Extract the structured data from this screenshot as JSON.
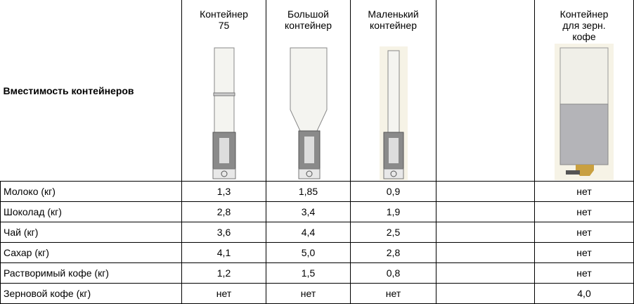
{
  "table": {
    "header": {
      "label": "Вместимость контейнеров",
      "columns": [
        "Контейнер\n75",
        "Большой\nконтейнер",
        "Маленький\nконтейнер",
        "Контейнер\nдля зерн.\nкофе"
      ]
    },
    "rows": [
      {
        "label": "Молоко (кг)",
        "values": [
          "1,3",
          "1,85",
          "0,9",
          "нет"
        ]
      },
      {
        "label": "Шоколад (кг)",
        "values": [
          "2,8",
          "3,4",
          "1,9",
          "нет"
        ]
      },
      {
        "label": "Чай (кг)",
        "values": [
          "3,6",
          "4,4",
          "2,5",
          "нет"
        ]
      },
      {
        "label": "Сахар (кг)",
        "values": [
          "4,1",
          "5,0",
          "2,8",
          "нет"
        ]
      },
      {
        "label": "Растворимый кофе (кг)",
        "values": [
          "1,2",
          "1,5",
          "0,8",
          "нет"
        ]
      },
      {
        "label": "Зерновой кофе (кг)",
        "values": [
          "нет",
          "нет",
          "нет",
          "4,0"
        ]
      }
    ]
  }
}
